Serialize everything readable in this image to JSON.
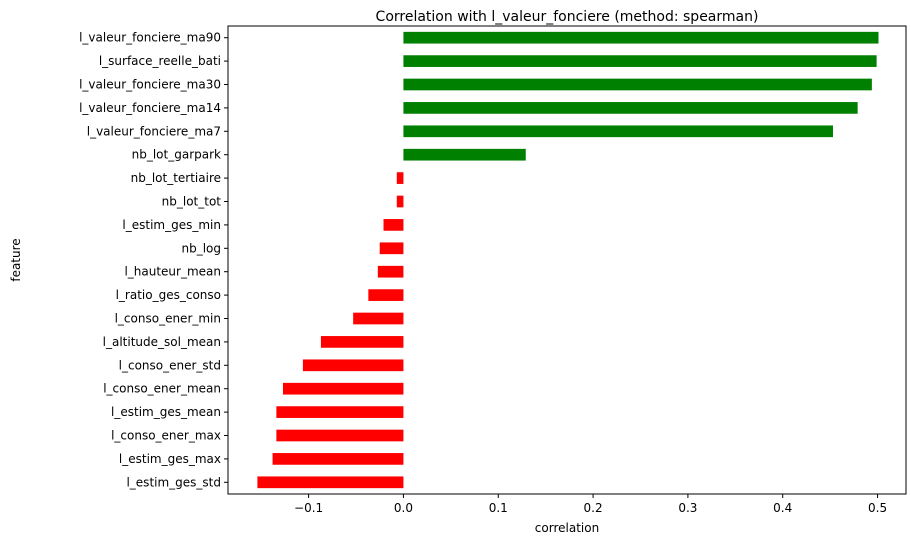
{
  "chart_data": {
    "type": "bar",
    "orientation": "horizontal",
    "title": "Correlation with l_valeur_fonciere (method: spearman)",
    "xlabel": "correlation",
    "ylabel": "feature",
    "xlim": [
      -0.185,
      0.53
    ],
    "xticks": [
      -0.1,
      0.0,
      0.1,
      0.2,
      0.3,
      0.4,
      0.5
    ],
    "xtick_labels": [
      "−0.1",
      "0.0",
      "0.1",
      "0.2",
      "0.3",
      "0.4",
      "0.5"
    ],
    "grid": false,
    "positive_color": "#008000",
    "negative_color": "#ff0000",
    "categories": [
      "l_valeur_fonciere_ma90",
      "l_surface_reelle_bati",
      "l_valeur_fonciere_ma30",
      "l_valeur_fonciere_ma14",
      "l_valeur_fonciere_ma7",
      "nb_lot_garpark",
      "nb_lot_tertiaire",
      "nb_lot_tot",
      "l_estim_ges_min",
      "nb_log",
      "l_hauteur_mean",
      "l_ratio_ges_conso",
      "l_conso_ener_min",
      "l_altitude_sol_mean",
      "l_conso_ener_std",
      "l_conso_ener_mean",
      "l_estim_ges_mean",
      "l_conso_ener_max",
      "l_estim_ges_max",
      "l_estim_ges_std"
    ],
    "values": [
      0.501,
      0.499,
      0.494,
      0.479,
      0.453,
      0.129,
      -0.007,
      -0.007,
      -0.021,
      -0.025,
      -0.027,
      -0.037,
      -0.053,
      -0.087,
      -0.106,
      -0.127,
      -0.134,
      -0.134,
      -0.138,
      -0.154
    ]
  }
}
